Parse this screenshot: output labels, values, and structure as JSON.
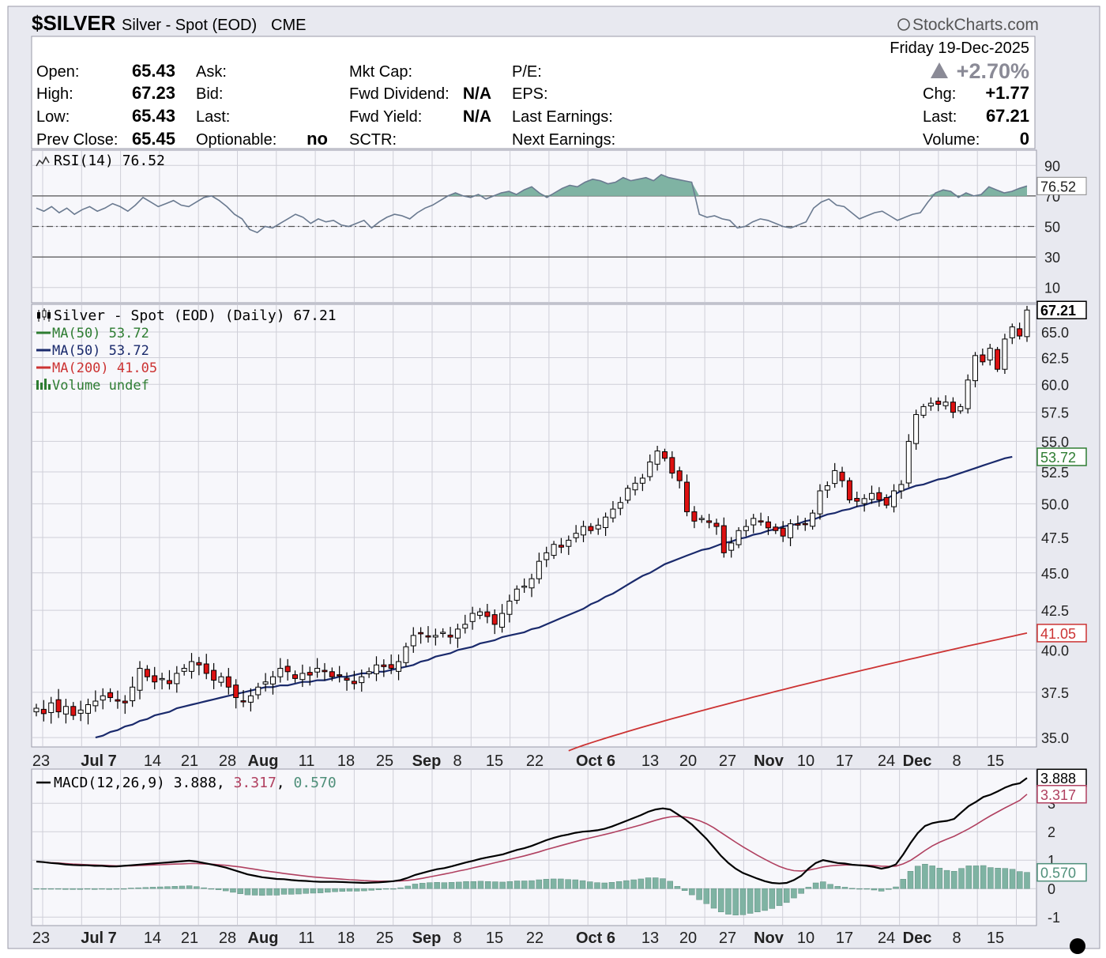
{
  "header": {
    "symbol": "$SILVER",
    "name": "Silver - Spot (EOD)",
    "exchange": "CME",
    "brand": "StockCharts.com",
    "brand_icon": "copyright-icon",
    "date": "Friday 19-Dec-2025",
    "pct_change": "+2.70%",
    "pct_change_icon": "up-triangle-icon"
  },
  "quote": {
    "open_label": "Open:",
    "open": "65.43",
    "high_label": "High:",
    "high": "67.23",
    "low_label": "Low:",
    "low": "65.43",
    "prev_close_label": "Prev Close:",
    "prev_close": "65.45",
    "ask_label": "Ask:",
    "bid_label": "Bid:",
    "last_label_mid": "Last:",
    "optionable_label": "Optionable:",
    "optionable": "no",
    "mkt_cap_label": "Mkt Cap:",
    "fwd_dividend_label": "Fwd Dividend:",
    "fwd_dividend": "N/A",
    "fwd_yield_label": "Fwd Yield:",
    "fwd_yield": "N/A",
    "sctr_label": "SCTR:",
    "pe_label": "P/E:",
    "eps_label": "EPS:",
    "last_earnings_label": "Last Earnings:",
    "next_earnings_label": "Next Earnings:",
    "chg_label": "Chg:",
    "chg": "+1.77",
    "last_label": "Last:",
    "last": "67.21",
    "volume_label": "Volume:",
    "volume": "0"
  },
  "colors": {
    "up_candle": "#ffffff",
    "down_candle": "#dd1111",
    "candle_outline": "#000000",
    "ma50": "#1a2a6c",
    "ma200": "#cc3333",
    "rsi_fill": "#7fb3a3",
    "macd_line": "#000000",
    "signal_line": "#b04060",
    "histogram": "#7fb3a3",
    "grid": "#cfcfd8",
    "panel_bg": "#f7f7fb"
  },
  "chart_data": [
    {
      "type": "line",
      "panel": "RSI",
      "title": "RSI(14) 76.52",
      "last_value_tag": "76.52",
      "y_ticks": [
        "90",
        "70",
        "50",
        "30",
        "10"
      ],
      "ylim": [
        0,
        100
      ],
      "reference_lines": [
        70,
        50,
        30
      ],
      "grid": true,
      "values": [
        62,
        60,
        63,
        59,
        62,
        58,
        61,
        63,
        60,
        62,
        65,
        63,
        60,
        64,
        69,
        66,
        63,
        65,
        67,
        64,
        63,
        66,
        69,
        70,
        67,
        63,
        58,
        55,
        48,
        46,
        50,
        49,
        52,
        55,
        58,
        56,
        52,
        55,
        53,
        54,
        51,
        50,
        52,
        54,
        49,
        53,
        56,
        58,
        57,
        55,
        59,
        62,
        64,
        67,
        70,
        72,
        70,
        69,
        71,
        68,
        70,
        72,
        73,
        71,
        74,
        76,
        72,
        69,
        72,
        75,
        77,
        76,
        79,
        81,
        80,
        78,
        79,
        82,
        80,
        81,
        82,
        80,
        84,
        82,
        81,
        80,
        79,
        58,
        56,
        57,
        55,
        54,
        49,
        50,
        53,
        55,
        54,
        52,
        50,
        49,
        51,
        53,
        62,
        66,
        68,
        64,
        63,
        59,
        55,
        57,
        59,
        60,
        57,
        54,
        56,
        58,
        59,
        66,
        72,
        74,
        73,
        69,
        72,
        70,
        71,
        76,
        74,
        72,
        73,
        75,
        76.52
      ]
    },
    {
      "type": "candlestick",
      "panel": "Price",
      "title": "Silver - Spot (EOD) (Daily) 67.21",
      "title_icon": "candlestick-icon",
      "legend": [
        {
          "label": "MA(50) 53.72",
          "color": "#2e7d32"
        },
        {
          "label": "MA(50) 53.72",
          "color": "#1a2a6c"
        },
        {
          "label": "MA(200) 41.05",
          "color": "#cc3333"
        },
        {
          "label": "Volume undef",
          "color": "#2e7d32",
          "icon": "volume-bars-icon"
        }
      ],
      "last_value_tags": [
        {
          "text": "67.21",
          "value": 67.21,
          "color": "#000000"
        },
        {
          "text": "53.72",
          "value": 53.72,
          "color": "#2e7d32"
        },
        {
          "text": "41.05",
          "value": 41.05,
          "color": "#cc3333"
        }
      ],
      "y_ticks": [
        "65.0",
        "62.5",
        "60.0",
        "57.5",
        "55.0",
        "52.5",
        "50.0",
        "47.5",
        "45.0",
        "42.5",
        "40.0",
        "37.5",
        "35.0"
      ],
      "ylim": [
        34.5,
        67.8
      ],
      "grid": true,
      "close": [
        36.6,
        36.3,
        36.9,
        36.4,
        36.7,
        36.2,
        36.5,
        36.8,
        37.0,
        37.3,
        37.2,
        37.0,
        36.9,
        37.8,
        38.9,
        38.4,
        38.1,
        38.3,
        38.0,
        38.6,
        38.9,
        39.3,
        39.1,
        38.6,
        38.2,
        38.4,
        37.8,
        37.2,
        37.0,
        37.3,
        37.8,
        38.1,
        38.4,
        38.9,
        38.7,
        38.3,
        38.6,
        38.5,
        38.9,
        38.7,
        38.4,
        38.5,
        38.2,
        38.0,
        38.4,
        38.7,
        39.1,
        39.0,
        38.9,
        39.3,
        40.2,
        40.9,
        41.0,
        40.8,
        40.9,
        41.1,
        40.8,
        41.3,
        41.6,
        42.3,
        42.4,
        42.1,
        41.6,
        42.3,
        43.1,
        43.9,
        44.1,
        44.6,
        45.8,
        46.4,
        47.0,
        46.8,
        47.3,
        47.8,
        48.3,
        48.0,
        48.4,
        49.0,
        49.6,
        50.1,
        51.2,
        51.6,
        52.0,
        53.3,
        54.2,
        53.6,
        52.4,
        51.8,
        49.4,
        48.7,
        48.9,
        48.6,
        48.3,
        46.4,
        47.1,
        48.0,
        48.3,
        48.9,
        48.7,
        48.2,
        48.0,
        47.6,
        48.5,
        48.4,
        48.5,
        49.3,
        51.0,
        51.4,
        52.6,
        51.8,
        50.3,
        50.2,
        50.4,
        50.8,
        50.3,
        49.9,
        51.0,
        51.5,
        55.0,
        57.3,
        58.0,
        58.3,
        58.2,
        58.4,
        57.5,
        58.0,
        60.4,
        62.7,
        62.1,
        63.4,
        61.4,
        64.3,
        65.5,
        64.6,
        67.21
      ],
      "ma50": [
        null,
        null,
        null,
        null,
        null,
        null,
        null,
        null,
        35.0,
        35.1,
        35.3,
        35.4,
        35.6,
        35.7,
        35.9,
        36.0,
        36.2,
        36.3,
        36.4,
        36.6,
        36.7,
        36.8,
        36.9,
        37.0,
        37.1,
        37.2,
        37.3,
        37.4,
        37.5,
        37.6,
        37.7,
        37.8,
        37.8,
        37.9,
        37.9,
        38.0,
        38.1,
        38.1,
        38.2,
        38.2,
        38.3,
        38.4,
        38.4,
        38.5,
        38.6,
        38.6,
        38.7,
        38.7,
        38.8,
        38.9,
        39.0,
        39.1,
        39.3,
        39.4,
        39.6,
        39.7,
        39.8,
        40.0,
        40.1,
        40.2,
        40.4,
        40.5,
        40.6,
        40.8,
        40.9,
        41.0,
        41.1,
        41.3,
        41.4,
        41.6,
        41.8,
        42.0,
        42.2,
        42.4,
        42.6,
        42.9,
        43.1,
        43.4,
        43.6,
        43.9,
        44.2,
        44.5,
        44.8,
        45.0,
        45.3,
        45.6,
        45.8,
        46.0,
        46.2,
        46.4,
        46.6,
        46.7,
        46.9,
        47.1,
        47.2,
        47.4,
        47.5,
        47.7,
        47.8,
        48.0,
        48.1,
        48.3,
        48.4,
        48.5,
        48.7,
        48.8,
        49.0,
        49.2,
        49.3,
        49.5,
        49.6,
        49.8,
        49.9,
        50.1,
        50.2,
        50.4,
        50.7,
        51.0,
        51.2,
        51.4,
        51.5,
        51.7,
        51.9,
        52.0,
        52.2,
        52.4,
        52.6,
        52.8,
        53.0,
        53.2,
        53.4,
        53.6,
        53.72
      ],
      "ma200_start": 34.3,
      "ma200_end": 41.05
    },
    {
      "type": "line",
      "panel": "MACD",
      "title": "MACD(12,26,9) 3.888, 3.317, 0.570",
      "legend_parts": [
        "MACD(12,26,9) 3.888",
        "3.317",
        "0.570"
      ],
      "last_value_tags": [
        {
          "text": "3.888",
          "value": 3.888,
          "color": "#000000"
        },
        {
          "text": "3.317",
          "value": 3.317,
          "color": "#b04060"
        },
        {
          "text": "0.570",
          "value": 0.57,
          "color": "#4f8f7a"
        }
      ],
      "y_ticks": [
        "3",
        "2",
        "1",
        "0",
        "-1"
      ],
      "ylim": [
        -1.3,
        4.2
      ],
      "grid": true,
      "macd": [
        0.95,
        0.93,
        0.9,
        0.88,
        0.85,
        0.83,
        0.82,
        0.82,
        0.8,
        0.8,
        0.78,
        0.78,
        0.8,
        0.82,
        0.84,
        0.86,
        0.88,
        0.9,
        0.92,
        0.94,
        0.96,
        0.98,
        0.95,
        0.9,
        0.85,
        0.8,
        0.74,
        0.66,
        0.58,
        0.5,
        0.45,
        0.4,
        0.37,
        0.34,
        0.33,
        0.3,
        0.28,
        0.27,
        0.25,
        0.24,
        0.24,
        0.24,
        0.23,
        0.22,
        0.21,
        0.2,
        0.21,
        0.22,
        0.24,
        0.26,
        0.3,
        0.38,
        0.48,
        0.55,
        0.62,
        0.68,
        0.72,
        0.78,
        0.85,
        0.92,
        0.98,
        1.05,
        1.1,
        1.15,
        1.2,
        1.28,
        1.36,
        1.42,
        1.5,
        1.6,
        1.7,
        1.78,
        1.85,
        1.9,
        1.96,
        2.0,
        2.02,
        2.05,
        2.1,
        2.18,
        2.28,
        2.38,
        2.48,
        2.58,
        2.7,
        2.78,
        2.82,
        2.78,
        2.62,
        2.45,
        2.25,
        2.0,
        1.75,
        1.45,
        1.15,
        0.9,
        0.7,
        0.55,
        0.45,
        0.35,
        0.26,
        0.2,
        0.18,
        0.2,
        0.3,
        0.45,
        0.7,
        0.9,
        1.0,
        0.95,
        0.9,
        0.88,
        0.84,
        0.82,
        0.8,
        0.76,
        0.7,
        0.75,
        0.85,
        1.2,
        1.6,
        1.95,
        2.2,
        2.3,
        2.35,
        2.38,
        2.45,
        2.68,
        2.9,
        3.05,
        3.22,
        3.3,
        3.42,
        3.55,
        3.65,
        3.7,
        3.888
      ],
      "signal": [
        0.95,
        0.93,
        0.91,
        0.9,
        0.88,
        0.86,
        0.85,
        0.84,
        0.83,
        0.82,
        0.81,
        0.8,
        0.8,
        0.8,
        0.81,
        0.82,
        0.83,
        0.84,
        0.85,
        0.86,
        0.87,
        0.88,
        0.88,
        0.87,
        0.86,
        0.84,
        0.82,
        0.79,
        0.76,
        0.72,
        0.68,
        0.64,
        0.6,
        0.57,
        0.53,
        0.5,
        0.47,
        0.44,
        0.41,
        0.39,
        0.37,
        0.35,
        0.33,
        0.31,
        0.3,
        0.28,
        0.27,
        0.26,
        0.26,
        0.26,
        0.27,
        0.29,
        0.32,
        0.36,
        0.41,
        0.46,
        0.51,
        0.56,
        0.62,
        0.67,
        0.73,
        0.79,
        0.85,
        0.91,
        0.97,
        1.03,
        1.09,
        1.15,
        1.22,
        1.29,
        1.37,
        1.44,
        1.51,
        1.58,
        1.65,
        1.72,
        1.78,
        1.84,
        1.9,
        1.96,
        2.03,
        2.1,
        2.17,
        2.24,
        2.32,
        2.4,
        2.47,
        2.52,
        2.54,
        2.52,
        2.47,
        2.39,
        2.28,
        2.14,
        1.97,
        1.8,
        1.63,
        1.47,
        1.32,
        1.17,
        1.03,
        0.9,
        0.78,
        0.69,
        0.63,
        0.62,
        0.65,
        0.7,
        0.76,
        0.8,
        0.82,
        0.83,
        0.83,
        0.83,
        0.82,
        0.81,
        0.79,
        0.78,
        0.79,
        0.87,
        0.99,
        1.16,
        1.34,
        1.5,
        1.63,
        1.74,
        1.84,
        1.97,
        2.1,
        2.25,
        2.41,
        2.56,
        2.7,
        2.84,
        2.97,
        3.1,
        3.317
      ]
    }
  ],
  "x_axis_labels": [
    {
      "text": "23",
      "bold": false
    },
    {
      "text": "Jul 7",
      "bold": true
    },
    {
      "text": "14",
      "bold": false
    },
    {
      "text": "21",
      "bold": false
    },
    {
      "text": "28",
      "bold": false
    },
    {
      "text": "Aug",
      "bold": true
    },
    {
      "text": "11",
      "bold": false
    },
    {
      "text": "18",
      "bold": false
    },
    {
      "text": "25",
      "bold": false
    },
    {
      "text": "Sep",
      "bold": true
    },
    {
      "text": "8",
      "bold": false
    },
    {
      "text": "15",
      "bold": false
    },
    {
      "text": "22",
      "bold": false
    },
    {
      "text": "Oct 6",
      "bold": true
    },
    {
      "text": "13",
      "bold": false
    },
    {
      "text": "20",
      "bold": false
    },
    {
      "text": "27",
      "bold": false
    },
    {
      "text": "Nov",
      "bold": true
    },
    {
      "text": "10",
      "bold": false
    },
    {
      "text": "17",
      "bold": false
    },
    {
      "text": "24",
      "bold": false
    },
    {
      "text": "Dec",
      "bold": true
    },
    {
      "text": "8",
      "bold": false
    },
    {
      "text": "15",
      "bold": false
    }
  ]
}
